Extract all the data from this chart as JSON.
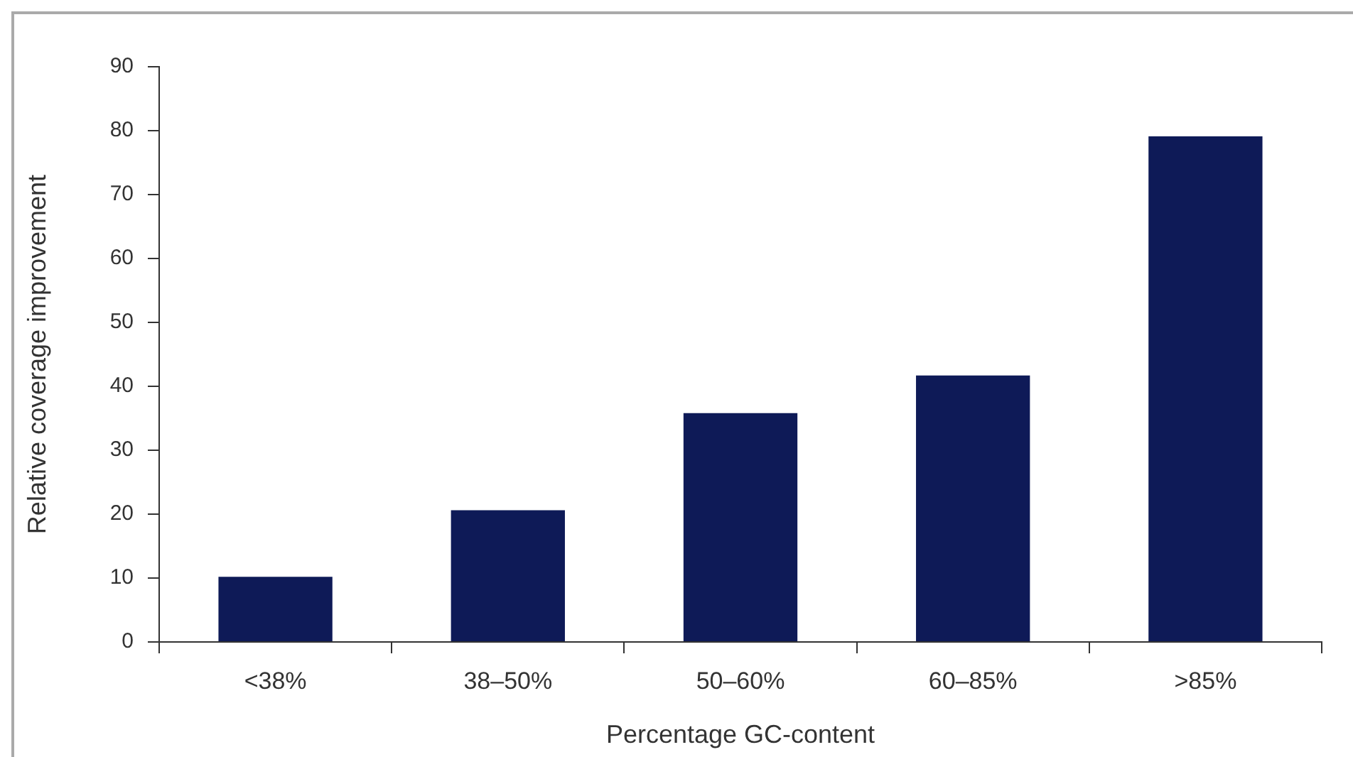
{
  "chart_data": {
    "type": "bar",
    "xlabel": "Percentage GC-content",
    "ylabel": "Relative coverage improvement",
    "categories": [
      "<38%",
      "38–50%",
      "50–60%",
      "60–85%",
      ">85%"
    ],
    "values": [
      10.2,
      20.6,
      35.8,
      41.7,
      79.1
    ],
    "color": "#0e1a57",
    "ylim": [
      0,
      90
    ],
    "yticks": [
      0,
      10,
      20,
      30,
      40,
      50,
      60,
      70,
      80,
      90
    ],
    "grid": false,
    "legend": false
  }
}
